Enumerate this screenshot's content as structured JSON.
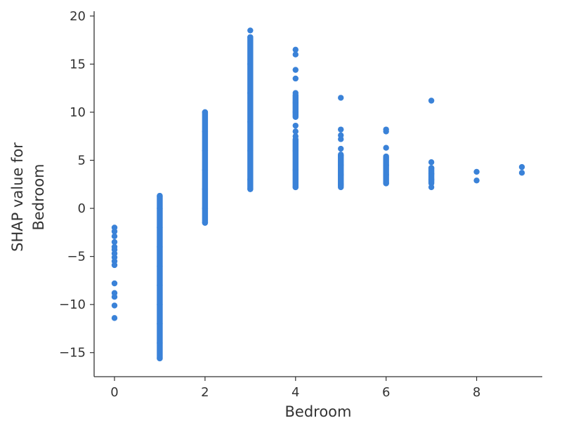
{
  "chart_data": {
    "type": "scatter",
    "title": "",
    "xlabel": "Bedroom",
    "ylabel": [
      "SHAP value for",
      "Bedroom"
    ],
    "xlim": [
      -0.45,
      9.45
    ],
    "ylim": [
      -17.5,
      20.5
    ],
    "xticks": [
      0,
      2,
      4,
      6,
      8
    ],
    "yticks": [
      20,
      15,
      10,
      5,
      0,
      -5,
      -10,
      -15
    ],
    "ytick_labels": [
      "20",
      "15",
      "10",
      "5",
      "0",
      "−5",
      "−10",
      "−15"
    ],
    "grid": false,
    "color": "#3a82d8",
    "series": [
      {
        "points": [
          [
            0,
            -2.0
          ],
          [
            0,
            -2.4
          ],
          [
            0,
            -2.9
          ],
          [
            0,
            -3.5
          ],
          [
            0,
            -4.0
          ],
          [
            0,
            -4.3
          ],
          [
            0,
            -4.7
          ],
          [
            0,
            -5.1
          ],
          [
            0,
            -5.5
          ],
          [
            0,
            -5.9
          ],
          [
            0,
            -7.8
          ],
          [
            0,
            -8.8
          ],
          [
            0,
            -9.2
          ],
          [
            0,
            -10.1
          ],
          [
            0,
            -11.4
          ],
          [
            1,
            1.3
          ],
          [
            1,
            0.0
          ],
          [
            1,
            -2.0
          ],
          [
            1,
            -4.0
          ],
          [
            1,
            -6.0
          ],
          [
            1,
            -8.0
          ],
          [
            1,
            -10.0
          ],
          [
            1,
            -12.0
          ],
          [
            1,
            -14.0
          ],
          [
            1,
            -15.6
          ],
          [
            2,
            10.0
          ],
          [
            2,
            8.0
          ],
          [
            2,
            6.0
          ],
          [
            2,
            4.0
          ],
          [
            2,
            2.0
          ],
          [
            2,
            0.0
          ],
          [
            2,
            -1.5
          ],
          [
            3,
            18.5
          ],
          [
            3,
            17.8
          ],
          [
            3,
            15.0
          ],
          [
            3,
            12.0
          ],
          [
            3,
            9.0
          ],
          [
            3,
            6.0
          ],
          [
            3,
            3.0
          ],
          [
            3,
            2.0
          ],
          [
            4,
            16.5
          ],
          [
            4,
            16.0
          ],
          [
            4,
            14.4
          ],
          [
            4,
            13.5
          ],
          [
            4,
            12.0
          ],
          [
            4,
            11.0
          ],
          [
            4,
            10.0
          ],
          [
            4,
            9.5
          ],
          [
            4,
            8.6
          ],
          [
            4,
            8.0
          ],
          [
            4,
            7.5
          ],
          [
            4,
            6.0
          ],
          [
            4,
            4.0
          ],
          [
            4,
            2.2
          ],
          [
            5,
            11.5
          ],
          [
            5,
            8.2
          ],
          [
            5,
            7.6
          ],
          [
            5,
            7.2
          ],
          [
            5,
            6.2
          ],
          [
            5,
            5.5
          ],
          [
            5,
            4.5
          ],
          [
            5,
            3.5
          ],
          [
            5,
            2.5
          ],
          [
            5,
            2.2
          ],
          [
            6,
            8.2
          ],
          [
            6,
            8.0
          ],
          [
            6,
            6.3
          ],
          [
            6,
            5.4
          ],
          [
            6,
            4.5
          ],
          [
            6,
            3.5
          ],
          [
            6,
            2.6
          ],
          [
            7,
            11.2
          ],
          [
            7,
            4.8
          ],
          [
            7,
            4.2
          ],
          [
            7,
            3.6
          ],
          [
            7,
            3.0
          ],
          [
            7,
            2.2
          ],
          [
            8,
            3.8
          ],
          [
            8,
            2.9
          ],
          [
            9,
            4.3
          ],
          [
            9,
            3.7
          ]
        ]
      }
    ],
    "bands": [
      {
        "x": 1,
        "y_from": -15.6,
        "y_to": 1.3
      },
      {
        "x": 2,
        "y_from": -1.5,
        "y_to": 10.0
      },
      {
        "x": 3,
        "y_from": 2.0,
        "y_to": 17.8
      },
      {
        "x": 4,
        "y_from": 2.2,
        "y_to": 7.2
      },
      {
        "x": 4,
        "y_from": 9.6,
        "y_to": 11.8
      },
      {
        "x": 5,
        "y_from": 2.3,
        "y_to": 5.6
      },
      {
        "x": 6,
        "y_from": 2.6,
        "y_to": 5.3
      },
      {
        "x": 7,
        "y_from": 2.6,
        "y_to": 4.2
      }
    ]
  }
}
